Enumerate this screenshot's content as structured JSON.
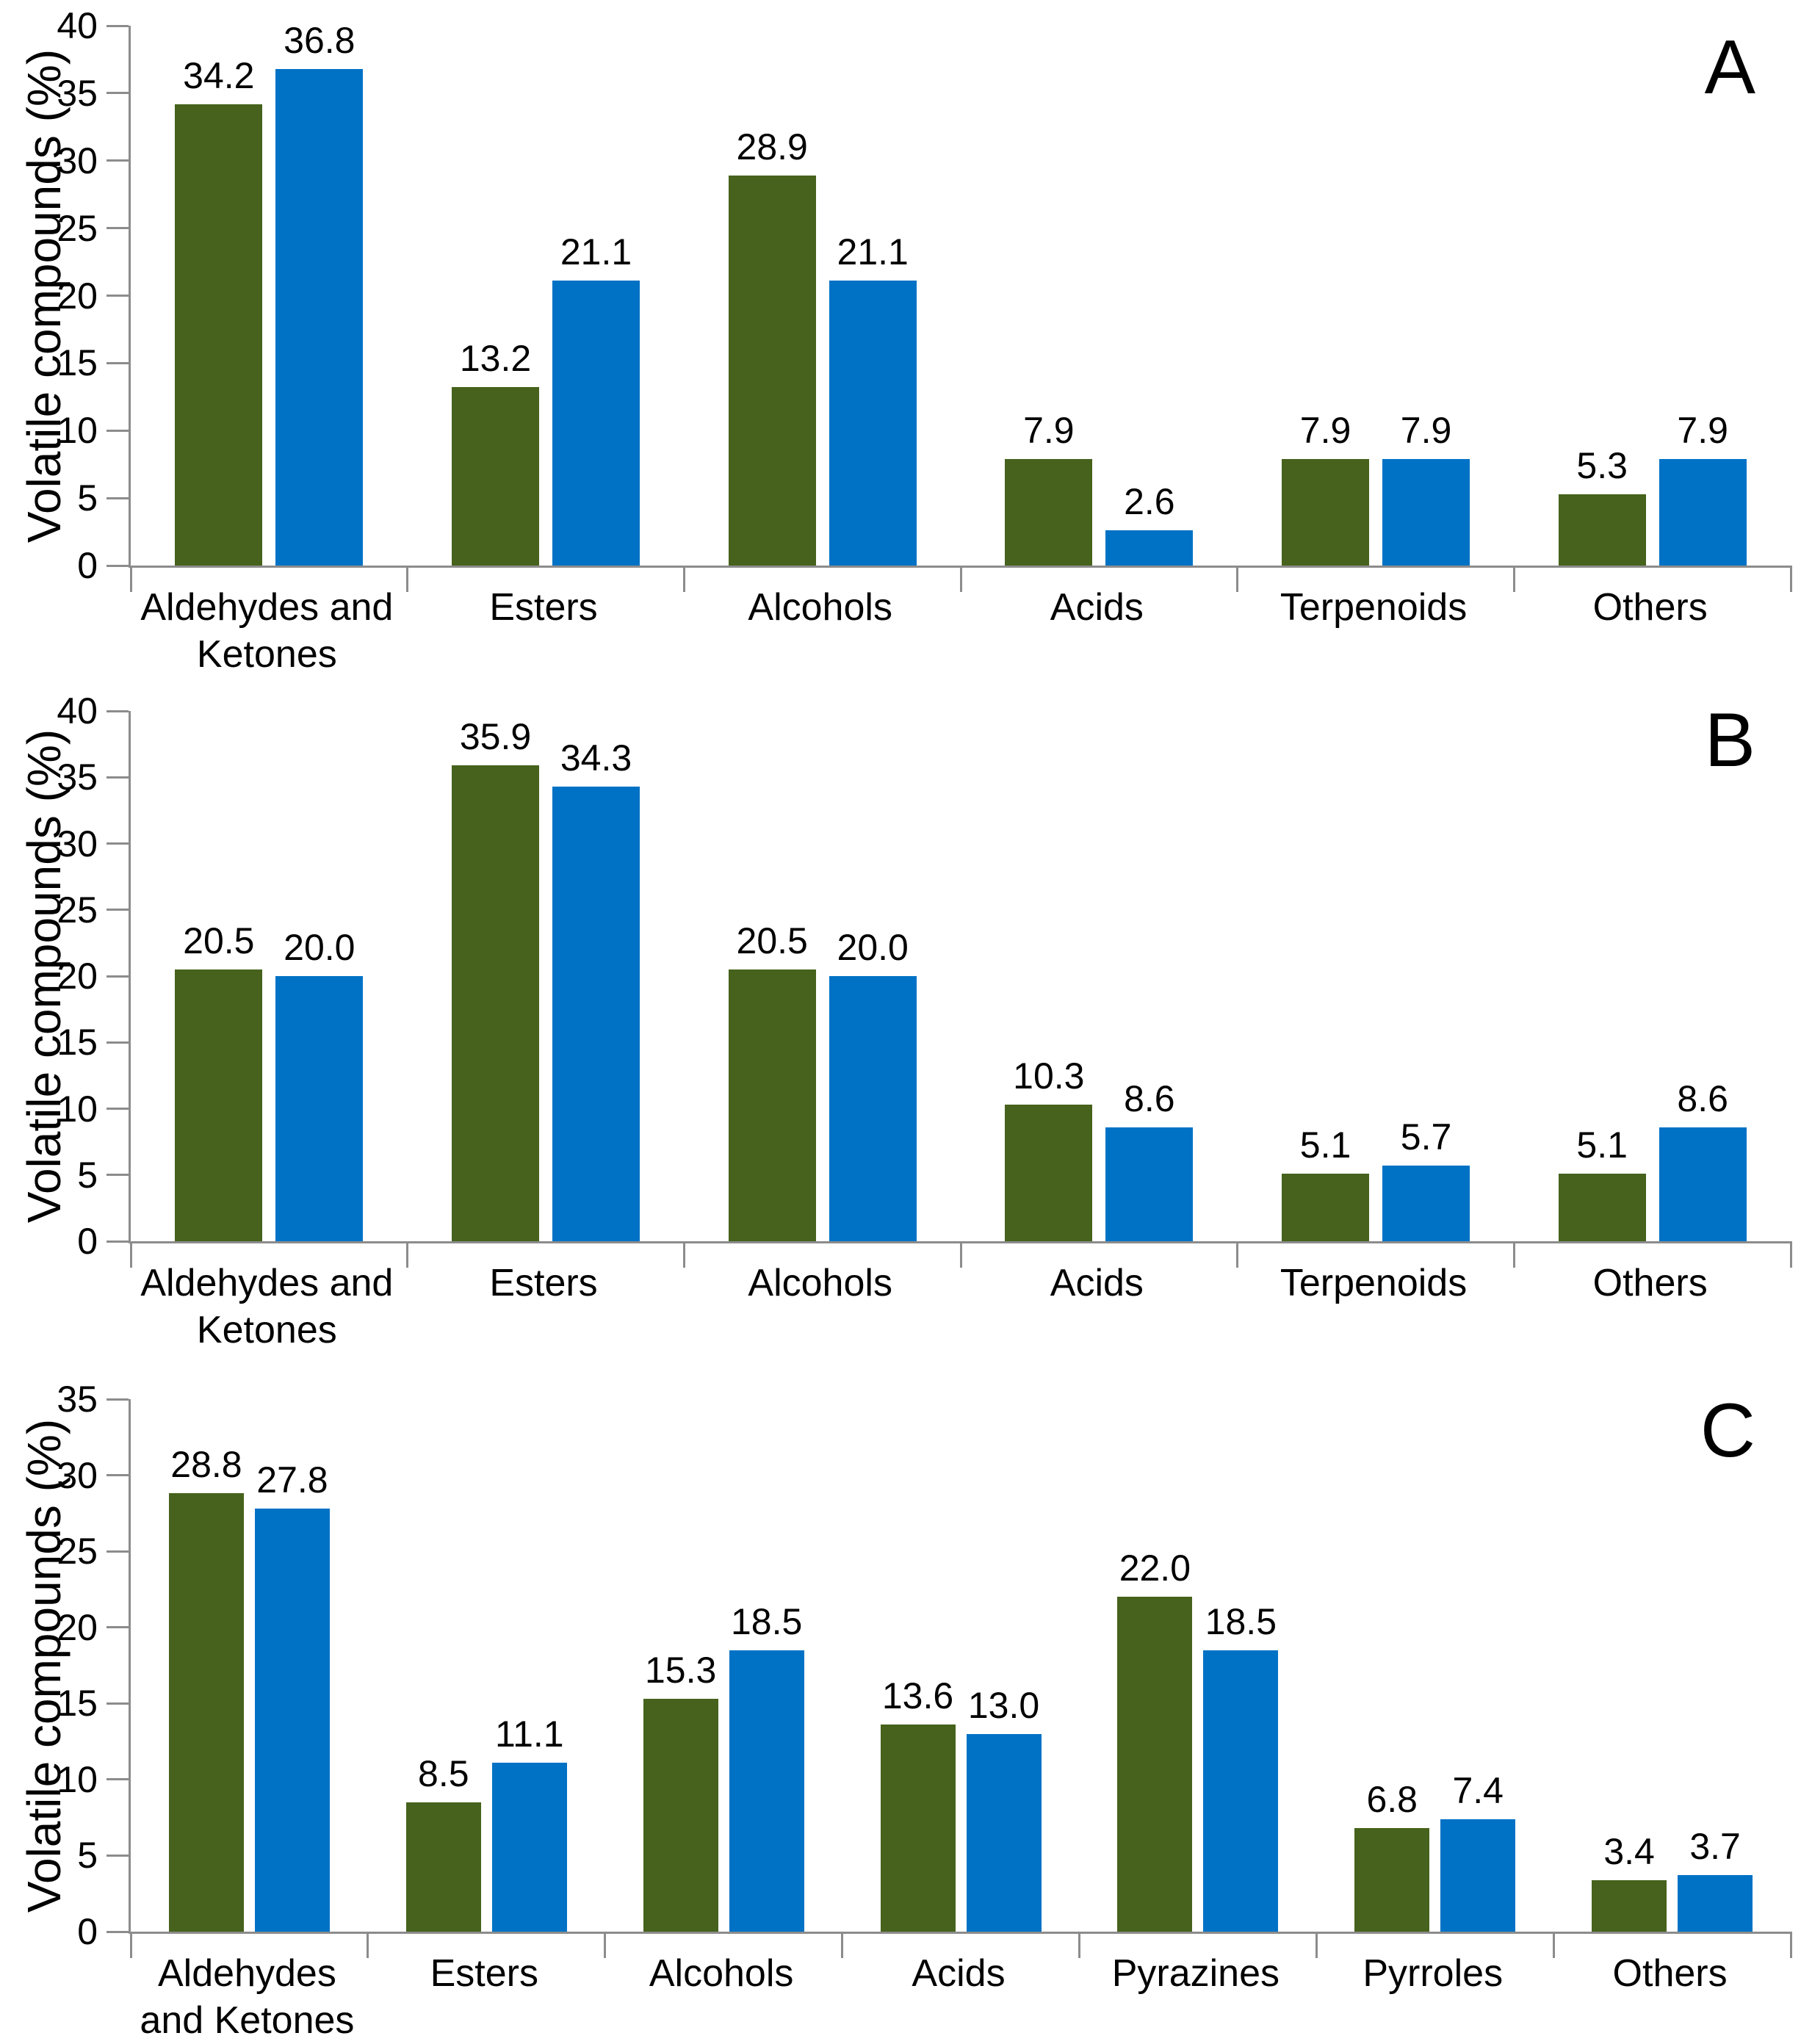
{
  "figure": {
    "description": "Three stacked grouped bar charts of volatile compound classes",
    "panel_letters": [
      "A",
      "B",
      "C"
    ]
  },
  "colors": {
    "green_series": "#46621c",
    "blue_series": "#0072c6",
    "axis": "#8c8c8c",
    "text": "#000000"
  },
  "chart_data": [
    {
      "panel": "A",
      "type": "bar",
      "title": "",
      "xlabel": "",
      "ylabel": "Volatile compounds (%)",
      "ylim": [
        0,
        40
      ],
      "ytick_step": 5,
      "grid": false,
      "legend": "none",
      "data_labels": true,
      "categories": [
        [
          "Aldehydes and",
          "Ketones"
        ],
        [
          "Esters"
        ],
        [
          "Alcohols"
        ],
        [
          "Acids"
        ],
        [
          "Terpenoids"
        ],
        [
          "Others"
        ]
      ],
      "series": [
        {
          "name": "green",
          "color": "#46621c",
          "values": [
            34.2,
            13.2,
            28.9,
            7.9,
            7.9,
            5.3
          ]
        },
        {
          "name": "blue",
          "color": "#0072c6",
          "values": [
            36.8,
            21.1,
            21.1,
            2.6,
            7.9,
            7.9
          ]
        }
      ]
    },
    {
      "panel": "B",
      "type": "bar",
      "title": "",
      "xlabel": "",
      "ylabel": "Volatile compounds (%)",
      "ylim": [
        0,
        40
      ],
      "ytick_step": 5,
      "grid": false,
      "legend": "none",
      "data_labels": true,
      "categories": [
        [
          "Aldehydes and",
          "Ketones"
        ],
        [
          "Esters"
        ],
        [
          "Alcohols"
        ],
        [
          "Acids"
        ],
        [
          "Terpenoids"
        ],
        [
          "Others"
        ]
      ],
      "series": [
        {
          "name": "green",
          "color": "#46621c",
          "values": [
            20.5,
            35.9,
            20.5,
            10.3,
            5.1,
            5.1
          ]
        },
        {
          "name": "blue",
          "color": "#0072c6",
          "values": [
            20.0,
            34.3,
            20.0,
            8.6,
            5.7,
            8.6
          ]
        }
      ]
    },
    {
      "panel": "C",
      "type": "bar",
      "title": "",
      "xlabel": "",
      "ylabel": "Volatile compounds (%)",
      "ylim": [
        0,
        35
      ],
      "ytick_step": 5,
      "grid": false,
      "legend": "none",
      "data_labels": true,
      "categories": [
        [
          "Aldehydes",
          "and Ketones"
        ],
        [
          "Esters"
        ],
        [
          "Alcohols"
        ],
        [
          "Acids"
        ],
        [
          "Pyrazines"
        ],
        [
          "Pyrroles"
        ],
        [
          "Others"
        ]
      ],
      "series": [
        {
          "name": "green",
          "color": "#46621c",
          "values": [
            28.8,
            8.5,
            15.3,
            13.6,
            22.0,
            6.8,
            3.4
          ]
        },
        {
          "name": "blue",
          "color": "#0072c6",
          "values": [
            27.8,
            11.1,
            18.5,
            13.0,
            18.5,
            7.4,
            3.7
          ]
        }
      ]
    }
  ]
}
